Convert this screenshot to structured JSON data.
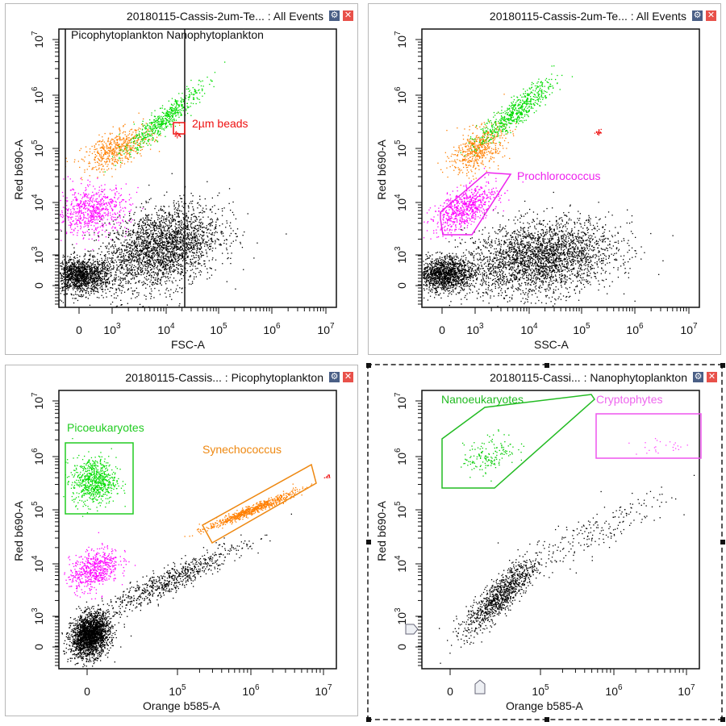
{
  "colors": {
    "black": "#000000",
    "magenta": "#ff00ff",
    "orange": "#ff7f00",
    "green": "#00dd00",
    "red": "#ee1111",
    "gate_green": "#22bb22",
    "gate_magenta": "#ee55ee",
    "gate_orange": "#ee8811"
  },
  "panels": [
    {
      "title": "20180115-Cassis-2um-Te... : All Events",
      "xlabel": "FSC-A",
      "ylabel": "Red b690-A",
      "gate_labels": [
        {
          "text": "Picophytoplankton Nanophytoplankton",
          "color": "#111111"
        },
        {
          "text": "2µm beads",
          "color": "#ee1111"
        }
      ]
    },
    {
      "title": "20180115-Cassis-2um-Te... : All Events",
      "xlabel": "SSC-A",
      "ylabel": "Red b690-A",
      "gate_labels": [
        {
          "text": "Prochlorococcus",
          "color": "#ee22ee"
        }
      ]
    },
    {
      "title": "20180115-Cassis... : Picophytoplankton",
      "xlabel": "Orange b585-A",
      "ylabel": "Red b690-A",
      "gate_labels": [
        {
          "text": "Picoeukaryotes",
          "color": "#22cc22"
        },
        {
          "text": "Synechococcus",
          "color": "#ee8811"
        }
      ]
    },
    {
      "title": "20180115-Cassi... : Nanophytoplankton",
      "xlabel": "Orange b585-A",
      "ylabel": "Red b690-A",
      "gate_labels": [
        {
          "text": "Nanoeukaryotes",
          "color": "#22bb22"
        },
        {
          "text": "Cryptophytes",
          "color": "#ee66ee"
        }
      ]
    }
  ],
  "chart_data": [
    {
      "type": "scatter",
      "title": "20180115-Cassis-2um-Te... : All Events",
      "xlabel": "FSC-A",
      "ylabel": "Red b690-A",
      "scale": "biexponential",
      "xticks": [
        "0",
        "10^3",
        "10^4",
        "10^5",
        "10^6",
        "10^7"
      ],
      "yticks": [
        "0",
        "10^3",
        "10^4",
        "10^5",
        "10^6",
        "10^7"
      ],
      "populations": [
        {
          "color": "#000000",
          "n": 1400,
          "x_log10": 2.4,
          "y_log10": 2.62,
          "sx": 0.28,
          "sy": 0.16,
          "rho": 0
        },
        {
          "color": "#000000",
          "n": 2600,
          "x_log10": 3.9,
          "y_log10": 3.15,
          "sx": 0.55,
          "sy": 0.4,
          "rho": 0.35
        },
        {
          "color": "#ff00ff",
          "n": 700,
          "x_log10": 2.6,
          "y_log10": 3.85,
          "sx": 0.35,
          "sy": 0.22,
          "rho": 0.1
        },
        {
          "color": "#ff7f00",
          "n": 550,
          "x_log10": 3.1,
          "y_log10": 5.0,
          "sx": 0.32,
          "sy": 0.2,
          "rho": 0.6
        },
        {
          "color": "#00dd00",
          "n": 550,
          "x_log10": 3.95,
          "y_log10": 5.55,
          "sx": 0.35,
          "sy": 0.3,
          "rho": 0.92
        },
        {
          "color": "#ee1111",
          "n": 20,
          "x_log10": 4.2,
          "y_log10": 5.27,
          "sx": 0.04,
          "sy": 0.03,
          "rho": 0
        }
      ]
    },
    {
      "type": "scatter",
      "title": "20180115-Cassis-2um-Te... : All Events",
      "xlabel": "SSC-A",
      "ylabel": "Red b690-A",
      "scale": "biexponential",
      "xticks": [
        "0",
        "10^3",
        "10^4",
        "10^5",
        "10^6",
        "10^7"
      ],
      "yticks": [
        "0",
        "10^3",
        "10^4",
        "10^5",
        "10^6",
        "10^7"
      ],
      "populations": [
        {
          "color": "#000000",
          "n": 1400,
          "x_log10": 2.4,
          "y_log10": 2.65,
          "sx": 0.28,
          "sy": 0.16,
          "rho": 0
        },
        {
          "color": "#000000",
          "n": 2800,
          "x_log10": 4.2,
          "y_log10": 2.95,
          "sx": 0.7,
          "sy": 0.35,
          "rho": 0.25
        },
        {
          "color": "#ff00ff",
          "n": 700,
          "x_log10": 2.8,
          "y_log10": 3.9,
          "sx": 0.3,
          "sy": 0.22,
          "rho": 0.6
        },
        {
          "color": "#ff7f00",
          "n": 550,
          "x_log10": 3.05,
          "y_log10": 5.0,
          "sx": 0.25,
          "sy": 0.22,
          "rho": 0.5
        },
        {
          "color": "#00dd00",
          "n": 600,
          "x_log10": 3.75,
          "y_log10": 5.7,
          "sx": 0.35,
          "sy": 0.3,
          "rho": 0.9
        },
        {
          "color": "#ee1111",
          "n": 20,
          "x_log10": 5.3,
          "y_log10": 5.3,
          "sx": 0.04,
          "sy": 0.03,
          "rho": 0
        }
      ]
    },
    {
      "type": "scatter",
      "title": "20180115-Cassis... : Picophytoplankton",
      "xlabel": "Orange b585-A",
      "ylabel": "Red b690-A",
      "scale": "biexponential",
      "xticks": [
        "0",
        "10^5",
        "10^6",
        "10^7"
      ],
      "yticks": [
        "0",
        "10^3",
        "10^4",
        "10^5",
        "10^6",
        "10^7"
      ],
      "populations": [
        {
          "color": "#00dd00",
          "n": 700,
          "x_log10": 3.85,
          "y_log10": 5.55,
          "sx": 0.15,
          "sy": 0.22,
          "rho": 0
        },
        {
          "color": "#ff00ff",
          "n": 600,
          "x_log10": 3.85,
          "y_log10": 3.9,
          "sx": 0.17,
          "sy": 0.2,
          "rho": 0.4
        },
        {
          "color": "#000000",
          "n": 2200,
          "x_log10": 3.8,
          "y_log10": 2.65,
          "sx": 0.13,
          "sy": 0.2,
          "rho": 0.2
        },
        {
          "color": "#000000",
          "n": 700,
          "x_log10": 4.9,
          "y_log10": 3.7,
          "sx": 0.5,
          "sy": 0.35,
          "rho": 0.93
        },
        {
          "color": "#ff7f00",
          "n": 700,
          "x_log10": 6.0,
          "y_log10": 5.0,
          "sx": 0.3,
          "sy": 0.17,
          "rho": 0.97
        },
        {
          "color": "#ee1111",
          "n": 10,
          "x_log10": 7.05,
          "y_log10": 5.65,
          "sx": 0.02,
          "sy": 0.03,
          "rho": 0
        }
      ]
    },
    {
      "type": "scatter",
      "title": "20180115-Cassi... : Nanophytoplankton",
      "xlabel": "Orange b585-A",
      "ylabel": "Red b690-A",
      "scale": "biexponential",
      "xticks": [
        "0",
        "10^5",
        "10^6",
        "10^7"
      ],
      "yticks": [
        "0",
        "10^3",
        "10^4",
        "10^5",
        "10^6",
        "10^7"
      ],
      "populations": [
        {
          "color": "#000000",
          "n": 1000,
          "x_log10": 4.45,
          "y_log10": 3.4,
          "sx": 0.25,
          "sy": 0.35,
          "rho": 0.85
        },
        {
          "color": "#000000",
          "n": 220,
          "x_log10": 5.6,
          "y_log10": 4.5,
          "sx": 0.6,
          "sy": 0.45,
          "rho": 0.9
        },
        {
          "color": "#00cc00",
          "n": 160,
          "x_log10": 4.3,
          "y_log10": 6.05,
          "sx": 0.18,
          "sy": 0.18,
          "rho": 0.4
        },
        {
          "color": "#ff44ff",
          "n": 25,
          "x_log10": 6.7,
          "y_log10": 6.2,
          "sx": 0.25,
          "sy": 0.07,
          "rho": 0.3
        }
      ]
    }
  ]
}
